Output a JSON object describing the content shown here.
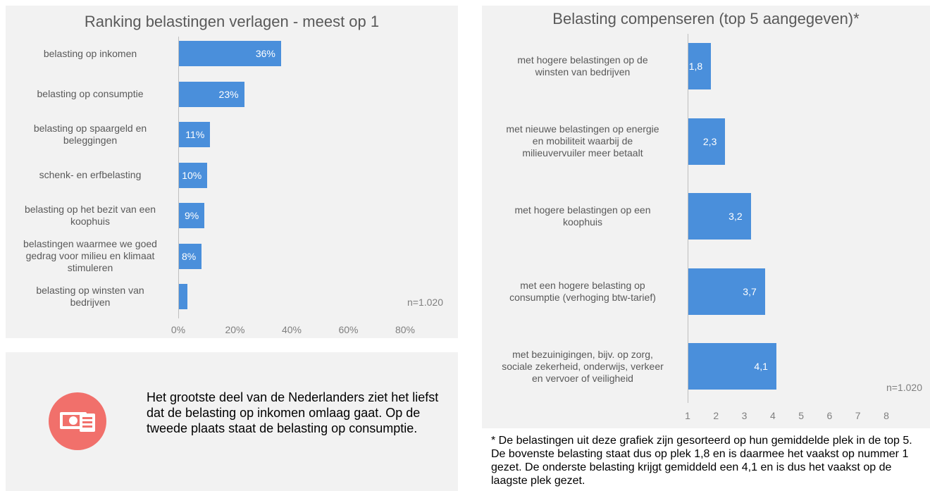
{
  "chart_data": [
    {
      "type": "bar",
      "orientation": "horizontal",
      "title": "Ranking belastingen verlagen - meest op 1",
      "categories": [
        "belasting op inkomen",
        "belasting op consumptie",
        "belasting op spaargeld en\nbeleggingen",
        "schenk- en erfbelasting",
        "belasting op het bezit van een\nkoophuis",
        "belastingen waarmee we goed\ngedrag voor milieu en klimaat\nstimuleren",
        "belasting op winsten van\nbedrijven"
      ],
      "values": [
        36,
        23,
        11,
        10,
        9,
        8,
        3
      ],
      "value_labels": [
        "36%",
        "23%",
        "11%",
        "10%",
        "9%",
        "8%",
        ""
      ],
      "xlim": [
        0,
        80
      ],
      "xticks": [
        "0%",
        "20%",
        "40%",
        "60%",
        "80%"
      ],
      "note": "n=1.020",
      "bar_color": "#4a8fdb"
    },
    {
      "type": "bar",
      "orientation": "horizontal",
      "title": "Belasting compenseren (top 5 aangegeven)*",
      "categories": [
        "met hogere belastingen op de\nwinsten van bedrijven",
        "met nieuwe belastingen op energie\nen mobiliteit waarbij de\nmilieuvervuiler meer betaalt",
        "met hogere belastingen op een\nkoophuis",
        "met een hogere belasting op\nconsumptie (verhoging btw-tarief)",
        "met bezuinigingen, bijv. op zorg,\nsociale zekerheid, onderwijs, verkeer\nen vervoer of veiligheid"
      ],
      "values": [
        1.8,
        2.3,
        3.2,
        3.7,
        4.1
      ],
      "value_labels": [
        "1,8",
        "2,3",
        "3,2",
        "3,7",
        "4,1"
      ],
      "xlim": [
        1,
        8
      ],
      "xticks": [
        "1",
        "2",
        "3",
        "4",
        "5",
        "6",
        "7",
        "8"
      ],
      "note": "n=1.020",
      "bar_color": "#4a8fdb"
    }
  ],
  "summary_text": "Het grootste deel van de Nederlanders ziet het liefst dat de belasting op inkomen omlaag gaat. Op de tweede plaats staat de belasting op consumptie.",
  "footnote": "* De belastingen uit deze grafiek zijn gesorteerd op hun gemiddelde plek in de top 5. De bovenste belasting staat dus op plek 1,8 en is daarmee het vaakst op nummer 1 gezet. De onderste belasting krijgt gemiddeld een 4,1 en is dus het vaakst op de laagste plek gezet.",
  "icon": {
    "name": "money-bill-icon",
    "color": "#f1706b"
  }
}
